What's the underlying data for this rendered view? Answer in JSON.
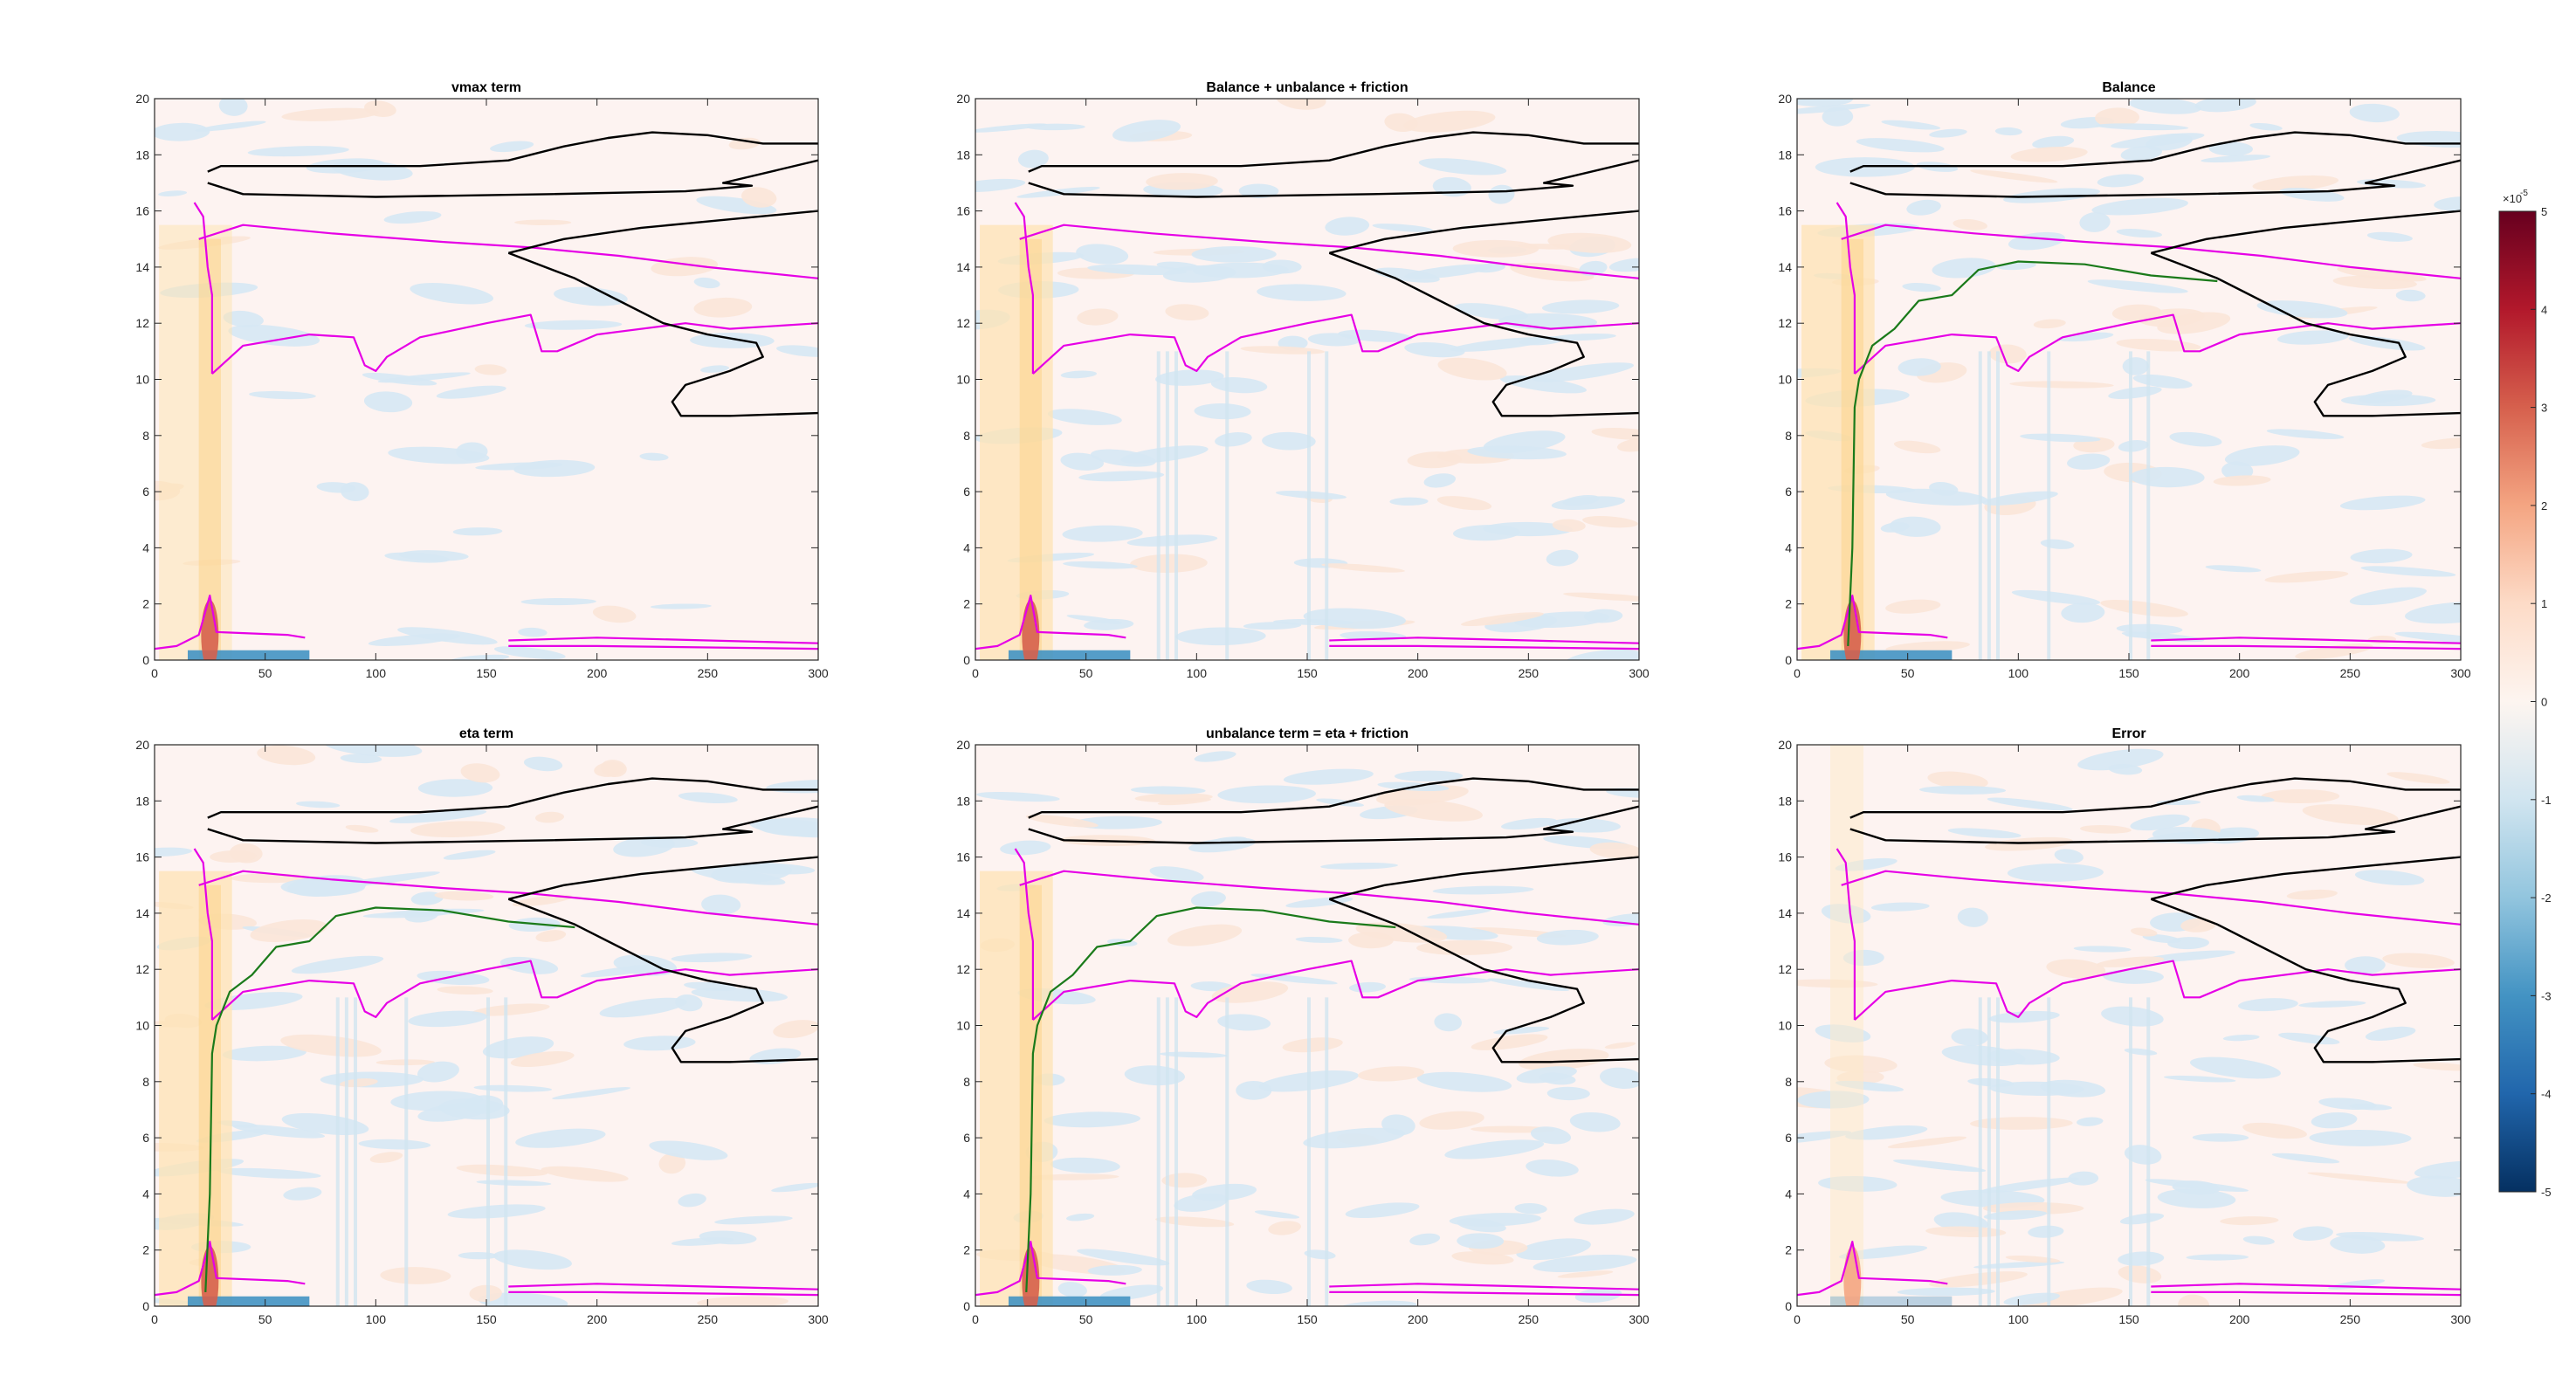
{
  "chart_data": {
    "type": "heatmap",
    "layout": "2x3 grid of filled-contour panels with shared colorbar",
    "x_axis": {
      "range": [
        0,
        300
      ],
      "ticks": [
        0,
        50,
        100,
        150,
        200,
        250,
        300
      ]
    },
    "y_axis": {
      "range": [
        0,
        20
      ],
      "ticks": [
        0,
        2,
        4,
        6,
        8,
        10,
        12,
        14,
        16,
        18,
        20
      ]
    },
    "grid": false,
    "legend": "none",
    "panels": [
      {
        "title": "vmax term",
        "tag": "vmax"
      },
      {
        "title": "Balance + unbalance + friction",
        "tag": "total"
      },
      {
        "title": "Balance",
        "tag": "balance"
      },
      {
        "title": "eta term",
        "tag": "eta"
      },
      {
        "title": "unbalance term = eta + friction",
        "tag": "unbalance"
      },
      {
        "title": "Error",
        "tag": "error"
      }
    ],
    "colorbar": {
      "range": [
        -5,
        5
      ],
      "ticks": [
        "5",
        "4",
        "3",
        "2",
        "1",
        "0",
        "-1",
        "-2",
        "-3",
        "-4",
        "-5"
      ],
      "exponent_label": "×10",
      "exponent": "-5",
      "colormap": "diverging blue-white-red"
    },
    "contours": {
      "black": [
        {
          "name": "upper-lobe",
          "points": [
            [
              24,
              17.4
            ],
            [
              30,
              17.6
            ],
            [
              60,
              17.6
            ],
            [
              120,
              17.6
            ],
            [
              160,
              17.8
            ],
            [
              185,
              18.3
            ],
            [
              205,
              18.6
            ],
            [
              225,
              18.8
            ],
            [
              250,
              18.7
            ],
            [
              275,
              18.4
            ],
            [
              300,
              18.4
            ]
          ]
        },
        {
          "name": "upper-lobe-lower",
          "points": [
            [
              24,
              17.0
            ],
            [
              40,
              16.6
            ],
            [
              100,
              16.5
            ],
            [
              180,
              16.6
            ],
            [
              240,
              16.7
            ],
            [
              270,
              16.9
            ],
            [
              257,
              17.0
            ],
            [
              300,
              17.8
            ]
          ]
        },
        {
          "name": "right-wedge-top",
          "points": [
            [
              160,
              14.5
            ],
            [
              185,
              15.0
            ],
            [
              220,
              15.4
            ],
            [
              260,
              15.7
            ],
            [
              300,
              16.0
            ]
          ]
        },
        {
          "name": "right-wedge-bottom",
          "points": [
            [
              160,
              14.5
            ],
            [
              190,
              13.6
            ],
            [
              210,
              12.8
            ],
            [
              230,
              12.0
            ],
            [
              250,
              11.6
            ],
            [
              272,
              11.3
            ],
            [
              275,
              10.8
            ],
            [
              260,
              10.3
            ],
            [
              240,
              9.8
            ],
            [
              234,
              9.2
            ],
            [
              238,
              8.7
            ],
            [
              260,
              8.7
            ],
            [
              300,
              8.8
            ]
          ]
        }
      ],
      "magenta": [
        {
          "name": "upper-band",
          "points": [
            [
              20,
              15.0
            ],
            [
              40,
              15.5
            ],
            [
              80,
              15.2
            ],
            [
              130,
              14.9
            ],
            [
              170,
              14.7
            ],
            [
              210,
              14.4
            ],
            [
              250,
              14.0
            ],
            [
              300,
              13.6
            ]
          ]
        },
        {
          "name": "middle-band",
          "points": [
            [
              26,
              10.2
            ],
            [
              40,
              11.2
            ],
            [
              70,
              11.6
            ],
            [
              90,
              11.5
            ],
            [
              95,
              10.5
            ],
            [
              100,
              10.3
            ],
            [
              105,
              10.8
            ],
            [
              120,
              11.5
            ],
            [
              150,
              12.0
            ],
            [
              170,
              12.3
            ],
            [
              175,
              11.0
            ],
            [
              182,
              11.0
            ],
            [
              200,
              11.6
            ],
            [
              240,
              12.0
            ],
            [
              260,
              11.8
            ],
            [
              300,
              12.0
            ]
          ]
        },
        {
          "name": "left-stem",
          "points": [
            [
              18,
              16.3
            ],
            [
              22,
              15.8
            ],
            [
              24,
              14.0
            ],
            [
              26,
              13.0
            ],
            [
              26,
              11.0
            ],
            [
              26,
              10.2
            ]
          ]
        },
        {
          "name": "bottom-band",
          "points": [
            [
              160,
              0.7
            ],
            [
              200,
              0.8
            ],
            [
              250,
              0.7
            ],
            [
              300,
              0.6
            ]
          ]
        },
        {
          "name": "bottom-band-2",
          "points": [
            [
              160,
              0.5
            ],
            [
              200,
              0.5
            ],
            [
              250,
              0.45
            ],
            [
              300,
              0.4
            ]
          ]
        },
        {
          "name": "near-surface-left",
          "points": [
            [
              0,
              0.4
            ],
            [
              10,
              0.5
            ],
            [
              20,
              0.9
            ],
            [
              25,
              2.3
            ],
            [
              28,
              1.0
            ],
            [
              60,
              0.9
            ],
            [
              68,
              0.8
            ]
          ]
        }
      ],
      "green": [
        {
          "name": "jet-core",
          "points": [
            [
              23,
              0.5
            ],
            [
              25,
              4.0
            ],
            [
              26,
              9.0
            ],
            [
              28,
              10.0
            ],
            [
              34,
              11.2
            ],
            [
              44,
              11.8
            ],
            [
              55,
              12.8
            ],
            [
              70,
              13.0
            ],
            [
              82,
              13.9
            ],
            [
              100,
              14.2
            ],
            [
              130,
              14.1
            ],
            [
              160,
              13.7
            ],
            [
              190,
              13.5
            ]
          ]
        }
      ]
    }
  }
}
